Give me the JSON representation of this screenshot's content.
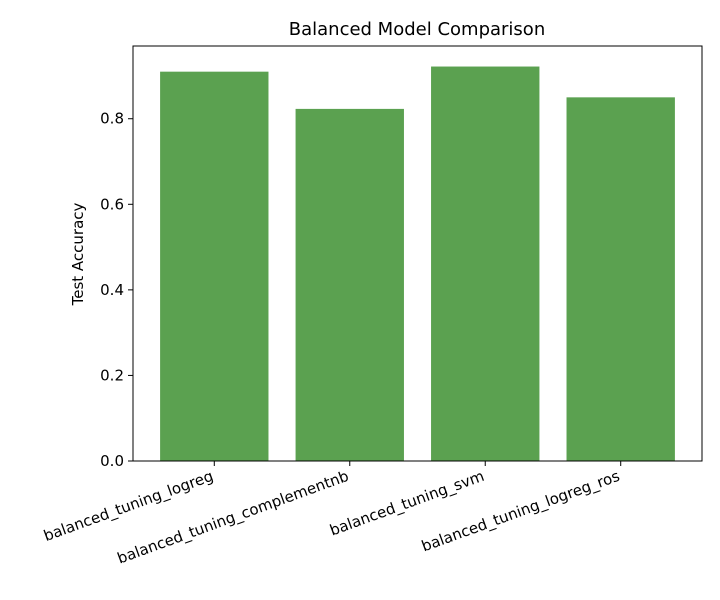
{
  "chart_data": {
    "type": "bar",
    "title": "Balanced Model Comparison",
    "xlabel": "",
    "ylabel": "Test Accuracy",
    "categories": [
      "balanced_tuning_logreg",
      "balanced_tuning_complementnb",
      "balanced_tuning_svm",
      "balanced_tuning_logreg_ros"
    ],
    "values": [
      0.91,
      0.823,
      0.922,
      0.85
    ],
    "ylim": [
      0,
      0.97
    ],
    "yticks": [
      0.0,
      0.2,
      0.4,
      0.6,
      0.8
    ],
    "ytick_labels": [
      "0.0",
      "0.2",
      "0.4",
      "0.6",
      "0.8"
    ],
    "bar_color": "#5ba150",
    "grid": false,
    "legend": "none"
  }
}
